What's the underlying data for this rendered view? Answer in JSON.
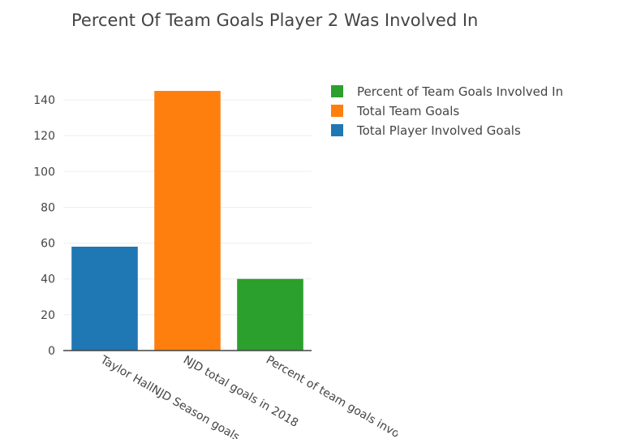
{
  "chart_data": {
    "type": "bar",
    "title": "Percent Of Team Goals Player 2 Was Involved In",
    "xlabel": "",
    "ylabel": "",
    "ylim": [
      0,
      145
    ],
    "yticks": [
      0,
      20,
      40,
      60,
      80,
      100,
      120,
      140
    ],
    "grid": true,
    "legend_position": "top-right",
    "series": [
      {
        "name": "Total Player Involved Goals",
        "category": "Taylor HallNJD Season goals",
        "value": 58,
        "color": "#1f77b4"
      },
      {
        "name": "Total Team Goals",
        "category": "NJD total goals in 2018",
        "value": 145,
        "color": "#ff7f0e"
      },
      {
        "name": "Percent of Team Goals Involved In",
        "category": "Percent of team goals involved in",
        "value": 40,
        "color": "#2ca02c"
      }
    ],
    "legend_order": [
      2,
      1,
      0
    ]
  }
}
